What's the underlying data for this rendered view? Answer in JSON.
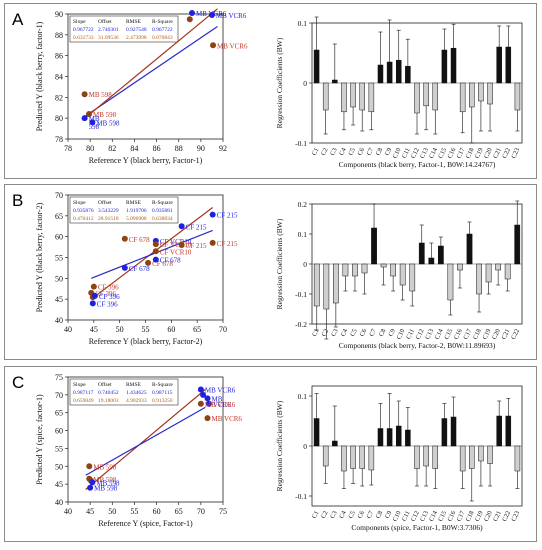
{
  "panels": [
    {
      "label": "A",
      "scatter": {
        "xlabel": "Reference Y (black berry, Factor-1)",
        "ylabel": "Predicted Y (black berry, factor-1)",
        "xlim": [
          78,
          92
        ],
        "ylim": [
          78,
          90
        ],
        "xticks": [
          78,
          80,
          82,
          84,
          86,
          88,
          90,
          92
        ],
        "yticks": [
          78,
          80,
          82,
          84,
          86,
          88,
          90
        ],
        "stats": {
          "headers": [
            "Slope",
            "Offset",
            "RMSE",
            "R-Square"
          ],
          "rows": [
            {
              "values": [
                "0.967722",
                "2.740301",
                "0.927548",
                "0.967722"
              ],
              "color": "#2222cc"
            },
            {
              "values": [
                "0.631733",
                "31.09536",
                "2.473998",
                "0.870843"
              ],
              "color": "#b05a14"
            }
          ]
        },
        "lines": [
          {
            "color": "#2a2acc",
            "x": [
              79.3,
              91.5
            ],
            "y": [
              80.0,
              88.8
            ]
          },
          {
            "color": "#a3361e",
            "x": [
              79.3,
              91.5
            ],
            "y": [
              79.8,
              90.5
            ]
          }
        ],
        "points": [
          {
            "x": 89.2,
            "y": 90.1,
            "color": "#2020e0",
            "label": "MB VCR6",
            "lc": "#2020e0"
          },
          {
            "x": 91.0,
            "y": 89.9,
            "color": "#2020e0",
            "label": "MB VCR6",
            "lc": "#2020e0"
          },
          {
            "x": 89.0,
            "y": 89.5,
            "color": "#8b4513",
            "label": "",
            "lc": "#c0392b"
          },
          {
            "x": 91.1,
            "y": 87.0,
            "color": "#8b4513",
            "label": "MB VCR6",
            "lc": "#c0392b"
          },
          {
            "x": 79.5,
            "y": 82.3,
            "color": "#8b4513",
            "label": "MB 598",
            "lc": "#c0392b"
          },
          {
            "x": 79.9,
            "y": 80.4,
            "color": "#8b4513",
            "label": "MB 598",
            "lc": "#c0392b"
          },
          {
            "x": 79.5,
            "y": 80.0,
            "color": "#2020e0",
            "label": "MB\n598",
            "lc": "#2020e0"
          },
          {
            "x": 80.2,
            "y": 79.6,
            "color": "#2020e0",
            "label": "MB 598",
            "lc": "#2020e0"
          }
        ]
      },
      "bars": {
        "ylabel": "Regression Coefficients (BW)",
        "xlabel": "Components (black berry, Factor-1, B0W:14.24767)",
        "ylim": [
          -0.1,
          0.1
        ],
        "yticks": [
          -0.1,
          0,
          0.1
        ],
        "categories": [
          "C1",
          "C2",
          "C3",
          "C4",
          "C5",
          "C6",
          "C7",
          "C8",
          "C9",
          "C10",
          "C11",
          "C12",
          "C13",
          "C14",
          "C15",
          "C16",
          "C17",
          "C18",
          "C19",
          "C20",
          "C21",
          "C22",
          "C23"
        ],
        "values": [
          0.055,
          -0.045,
          0.005,
          -0.048,
          -0.04,
          -0.045,
          -0.048,
          0.03,
          0.035,
          0.038,
          0.028,
          -0.05,
          -0.038,
          -0.045,
          0.055,
          0.058,
          -0.048,
          -0.04,
          -0.03,
          -0.035,
          0.06,
          0.06,
          -0.045
        ],
        "errors": [
          0.055,
          0.04,
          0.06,
          0.03,
          0.03,
          0.035,
          0.03,
          0.055,
          0.07,
          0.05,
          0.045,
          0.035,
          0.04,
          0.04,
          0.035,
          0.04,
          0.035,
          0.06,
          0.05,
          0.045,
          0.035,
          0.035,
          0.035
        ]
      }
    },
    {
      "label": "B",
      "scatter": {
        "xlabel": "Reference Y (black berry, Factor-2)",
        "ylabel": "Predicted Y (black berry, factor-2)",
        "xlim": [
          40,
          70
        ],
        "ylim": [
          40,
          70
        ],
        "xticks": [
          40,
          45,
          50,
          55,
          60,
          65,
          70
        ],
        "yticks": [
          40,
          45,
          50,
          55,
          60,
          65,
          70
        ],
        "stats": {
          "headers": [
            "Slope",
            "Offset",
            "RMSE",
            "R-Square"
          ],
          "rows": [
            {
              "values": [
                "0.935876",
                "3.543229",
                "1.919706",
                "0.935881"
              ],
              "color": "#2222cc"
            },
            {
              "values": [
                "0.470412",
                "28.91518",
                "5.096908",
                "0.638834"
              ],
              "color": "#b05a14"
            }
          ]
        },
        "lines": [
          {
            "color": "#a3361e",
            "x": [
              44.5,
              68
            ],
            "y": [
              45,
              67
            ]
          },
          {
            "color": "#2a2acc",
            "x": [
              44.5,
              68
            ],
            "y": [
              50,
              61.5
            ]
          }
        ],
        "points": [
          {
            "x": 68,
            "y": 65.3,
            "color": "#2020e0",
            "label": "CF 215",
            "lc": "#2020e0"
          },
          {
            "x": 62,
            "y": 62.5,
            "color": "#2020e0",
            "label": "CF 215",
            "lc": "#2020e0"
          },
          {
            "x": 57,
            "y": 59.0,
            "color": "#2020e0",
            "label": "CF VCR10",
            "lc": "#2020e0"
          },
          {
            "x": 57,
            "y": 58.2,
            "color": "#8b4513",
            "label": "CF VCR10",
            "lc": "#c0392b"
          },
          {
            "x": 51,
            "y": 59.5,
            "color": "#8b4513",
            "label": "CF 678",
            "lc": "#c0392b"
          },
          {
            "x": 62,
            "y": 58.0,
            "color": "#8b4513",
            "label": "CF 215",
            "lc": "#c0392b"
          },
          {
            "x": 68,
            "y": 58.5,
            "color": "#8b4513",
            "label": "CF 215",
            "lc": "#c0392b"
          },
          {
            "x": 57,
            "y": 56.5,
            "color": "#8b4513",
            "label": "CF VCR10",
            "lc": "#c0392b"
          },
          {
            "x": 55.5,
            "y": 53.7,
            "color": "#8b4513",
            "label": "CF 678",
            "lc": "#c0392b"
          },
          {
            "x": 57,
            "y": 54.5,
            "color": "#2020e0",
            "label": "CF 678",
            "lc": "#2020e0"
          },
          {
            "x": 51,
            "y": 52.5,
            "color": "#2020e0",
            "label": "CF 678",
            "lc": "#2020e0"
          },
          {
            "x": 45,
            "y": 48.0,
            "color": "#8b4513",
            "label": "CF 396",
            "lc": "#c0392b"
          },
          {
            "x": 44.5,
            "y": 46.5,
            "color": "#8b4513",
            "label": "CF 396",
            "lc": "#c0392b"
          },
          {
            "x": 44.8,
            "y": 45.5,
            "color": "#8b4513",
            "label": "",
            "lc": "#c0392b"
          },
          {
            "x": 45.2,
            "y": 45.8,
            "color": "#2020e0",
            "label": "CF 396",
            "lc": "#2020e0"
          },
          {
            "x": 44.8,
            "y": 44.0,
            "color": "#2020e0",
            "label": "CF 396",
            "lc": "#2020e0"
          }
        ]
      },
      "bars": {
        "ylabel": "Regression Coefficients (BW)",
        "xlabel": "Components (black berry, Factor-2, B0W:11.89693)",
        "ylim": [
          -0.2,
          0.2
        ],
        "yticks": [
          -0.2,
          -0.1,
          0,
          0.1,
          0.2
        ],
        "categories": [
          "C1",
          "C2",
          "C3",
          "C4",
          "C5",
          "C6",
          "C7",
          "C8",
          "C9",
          "C10",
          "C11",
          "C12",
          "C13",
          "C14",
          "C15",
          "C16",
          "C17",
          "C18",
          "C19",
          "C20",
          "C21",
          "C22"
        ],
        "values": [
          -0.14,
          -0.15,
          -0.13,
          -0.04,
          -0.04,
          -0.03,
          0.12,
          -0.01,
          -0.04,
          -0.07,
          -0.09,
          0.07,
          0.02,
          0.06,
          -0.12,
          -0.02,
          0.1,
          -0.1,
          -0.06,
          -0.02,
          -0.05,
          0.13
        ],
        "errors": [
          0.08,
          0.1,
          0.08,
          0.05,
          0.05,
          0.07,
          0.08,
          0.06,
          0.05,
          0.05,
          0.05,
          0.06,
          0.05,
          0.03,
          0.05,
          0.06,
          0.04,
          0.06,
          0.04,
          0.05,
          0.04,
          0.08
        ]
      }
    },
    {
      "label": "C",
      "scatter": {
        "xlabel": "Reference Y (spice, Factor-1)",
        "ylabel": "Predicted Y (spice, factor-1)",
        "xlim": [
          40,
          75
        ],
        "ylim": [
          40,
          75
        ],
        "xticks": [
          40,
          45,
          50,
          55,
          60,
          65,
          70,
          75
        ],
        "yticks": [
          40,
          45,
          50,
          55,
          60,
          65,
          70,
          75
        ],
        "stats": {
          "headers": [
            "Slope",
            "Offset",
            "RMSE",
            "R-Square"
          ],
          "rows": [
            {
              "values": [
                "0.987117",
                "0.740452",
                "1.434625",
                "0.987115"
              ],
              "color": "#2222cc"
            },
            {
              "values": [
                "0.659049",
                "19.18003",
                "4.902933",
                "0.913250"
              ],
              "color": "#b05a14"
            }
          ]
        },
        "lines": [
          {
            "color": "#a3361e",
            "x": [
              44,
              71
            ],
            "y": [
              43.5,
              71.5
            ]
          },
          {
            "color": "#2a2acc",
            "x": [
              44,
              71
            ],
            "y": [
              47.5,
              66.5
            ]
          }
        ],
        "points": [
          {
            "x": 70,
            "y": 71.5,
            "color": "#2020e0",
            "label": "MB VCR6",
            "lc": "#2020e0"
          },
          {
            "x": 70.5,
            "y": 70.0,
            "color": "#2020e0",
            "label": "",
            "lc": "#2020e0"
          },
          {
            "x": 71.5,
            "y": 69.0,
            "color": "#2020e0",
            "label": "MB",
            "lc": "#2020e0"
          },
          {
            "x": 71.8,
            "y": 67.5,
            "color": "#2020e0",
            "label": "VCR6",
            "lc": "#2020e0"
          },
          {
            "x": 70,
            "y": 67.5,
            "color": "#8b4513",
            "label": "MB VCR6",
            "lc": "#c0392b"
          },
          {
            "x": 71.5,
            "y": 63.5,
            "color": "#8b4513",
            "label": "MB VCR6",
            "lc": "#c0392b"
          },
          {
            "x": 44.8,
            "y": 50.0,
            "color": "#8b4513",
            "label": "MB 598",
            "lc": "#c0392b"
          },
          {
            "x": 44.8,
            "y": 46.5,
            "color": "#8b4513",
            "label": "MB 598",
            "lc": "#c0392b"
          },
          {
            "x": 45.2,
            "y": 46.0,
            "color": "#8b4513",
            "label": "",
            "lc": "#c0392b"
          },
          {
            "x": 45.5,
            "y": 45.5,
            "color": "#2020e0",
            "label": "MB 598",
            "lc": "#2020e0"
          },
          {
            "x": 45.0,
            "y": 44.0,
            "color": "#2020e0",
            "label": "MB 598",
            "lc": "#2020e0"
          }
        ]
      },
      "bars": {
        "ylabel": "Regression Coefficients (BW)",
        "xlabel": "Components (spice, Factor-1, B0W:3.7306)",
        "ylim": [
          -0.12,
          0.12
        ],
        "yticks": [
          -0.1,
          0,
          0.1
        ],
        "categories": [
          "C1",
          "C2",
          "C3",
          "C4",
          "C5",
          "C6",
          "C7",
          "C8",
          "C9",
          "C10",
          "C11",
          "C12",
          "C13",
          "C14",
          "C15",
          "C16",
          "C17",
          "C18",
          "C19",
          "C20",
          "C21",
          "C22",
          "C23"
        ],
        "values": [
          0.055,
          -0.04,
          0.01,
          -0.05,
          -0.045,
          -0.045,
          -0.048,
          0.035,
          0.035,
          0.04,
          0.032,
          -0.045,
          -0.04,
          -0.045,
          0.055,
          0.058,
          -0.05,
          -0.045,
          -0.03,
          -0.035,
          0.06,
          0.06,
          -0.05
        ],
        "errors": [
          0.05,
          0.035,
          0.07,
          0.035,
          0.03,
          0.035,
          0.03,
          0.05,
          0.07,
          0.05,
          0.045,
          0.035,
          0.04,
          0.04,
          0.03,
          0.04,
          0.035,
          0.065,
          0.05,
          0.045,
          0.03,
          0.035,
          0.035
        ]
      }
    }
  ]
}
